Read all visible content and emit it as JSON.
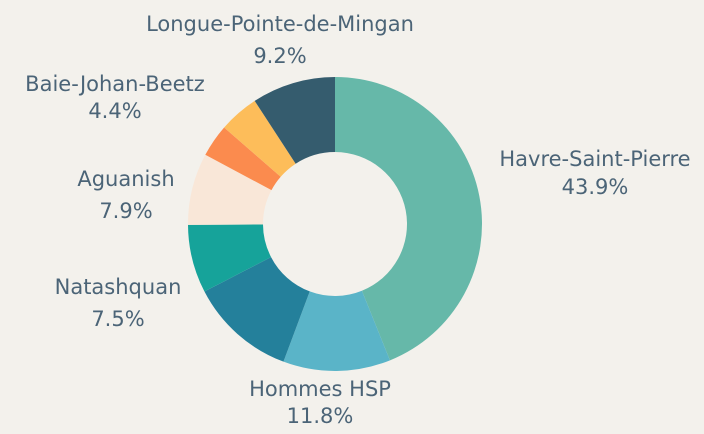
{
  "chart_data": {
    "type": "donut",
    "categories": [
      "Havre-Saint-Pierre",
      "Hommes HSP",
      null,
      "Natashquan",
      "Aguanish",
      null,
      "Baie-Johan-Beetz",
      "Longue-Pointe-de-Mingan"
    ],
    "values": [
      43.9,
      11.8,
      11.7,
      7.5,
      7.9,
      3.6,
      4.4,
      9.2
    ],
    "value_labels": [
      "43.9%",
      "11.8%",
      null,
      "7.5%",
      "7.9%",
      null,
      "4.4%",
      "9.2%"
    ],
    "colors": [
      "#66b8a9",
      "#5ab4c8",
      "#24809b",
      "#16a39a",
      "#f9e7d8",
      "#fb8b4e",
      "#fdbd5a",
      "#355c6e"
    ]
  }
}
